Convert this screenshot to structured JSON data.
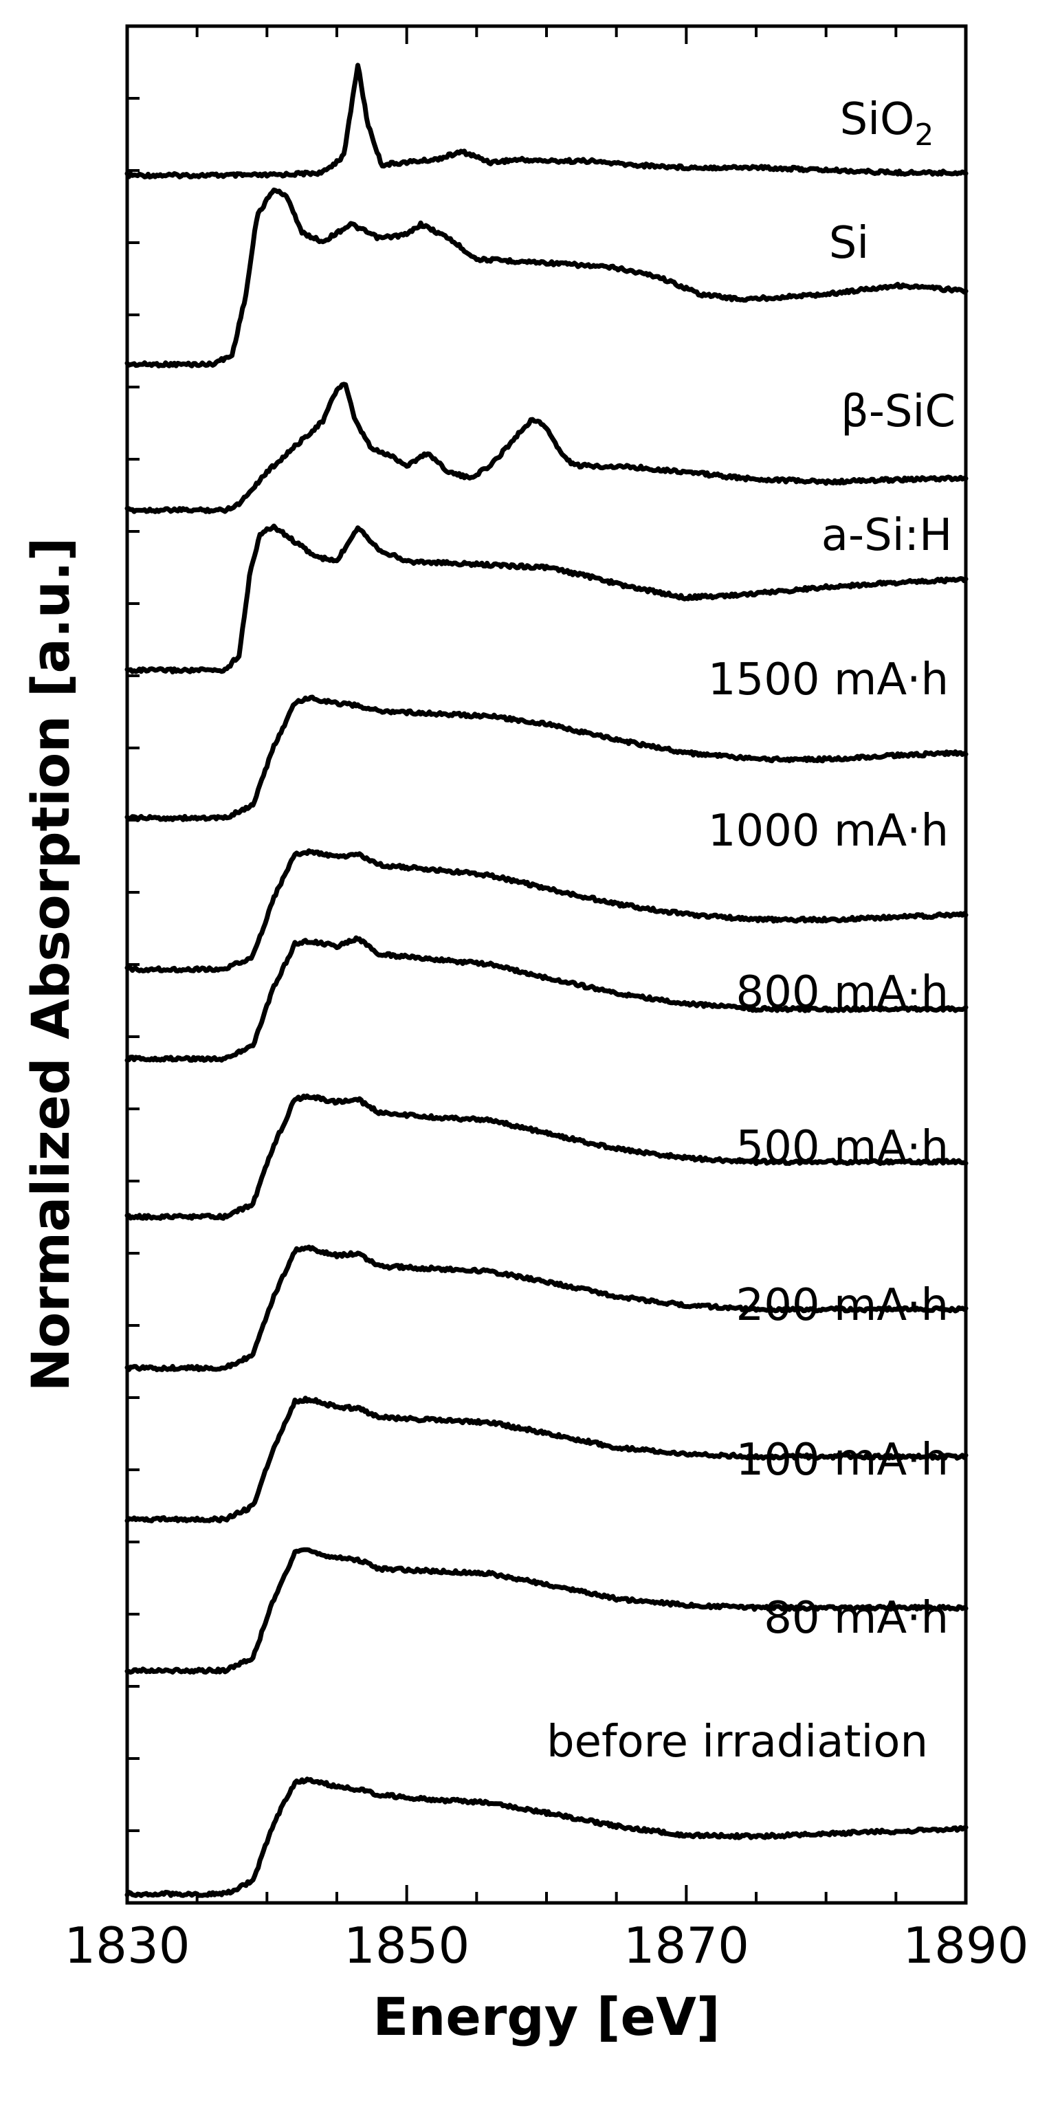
{
  "chart_data": {
    "type": "line",
    "title": "",
    "xlabel": "Energy [eV]",
    "ylabel": "Normalized Absorption [a.u.]",
    "xlim": [
      1830,
      1890
    ],
    "x_ticks": [
      "1830",
      "1850",
      "1870",
      "1890"
    ],
    "grid": false,
    "legend": "none",
    "series": [
      {
        "name": "SiO2",
        "label_main": "SiO",
        "label_sub": "2",
        "points": [
          [
            1830,
            0
          ],
          [
            1840,
            0
          ],
          [
            1844,
            0.02
          ],
          [
            1845.5,
            0.15
          ],
          [
            1846.5,
            0.85
          ],
          [
            1847.2,
            0.4
          ],
          [
            1848.2,
            0.08
          ],
          [
            1850,
            0.1
          ],
          [
            1852,
            0.12
          ],
          [
            1854,
            0.18
          ],
          [
            1856,
            0.1
          ],
          [
            1858,
            0.12
          ],
          [
            1860,
            0.11
          ],
          [
            1863,
            0.11
          ],
          [
            1866,
            0.08
          ],
          [
            1870,
            0.06
          ],
          [
            1875,
            0.06
          ],
          [
            1880,
            0.04
          ],
          [
            1885,
            0.02
          ],
          [
            1890,
            0.02
          ]
        ]
      },
      {
        "name": "Si",
        "label_main": "Si",
        "label_sub": "",
        "points": [
          [
            1830,
            0
          ],
          [
            1836,
            0
          ],
          [
            1837.5,
            0.05
          ],
          [
            1838.5,
            0.4
          ],
          [
            1839.3,
            0.85
          ],
          [
            1840.5,
            1.0
          ],
          [
            1841.5,
            0.95
          ],
          [
            1842.5,
            0.75
          ],
          [
            1844,
            0.7
          ],
          [
            1846,
            0.8
          ],
          [
            1848,
            0.72
          ],
          [
            1850,
            0.74
          ],
          [
            1851,
            0.8
          ],
          [
            1853,
            0.72
          ],
          [
            1855,
            0.6
          ],
          [
            1860,
            0.58
          ],
          [
            1865,
            0.55
          ],
          [
            1868,
            0.5
          ],
          [
            1871,
            0.4
          ],
          [
            1874,
            0.37
          ],
          [
            1880,
            0.4
          ],
          [
            1885,
            0.45
          ],
          [
            1890,
            0.42
          ]
        ]
      },
      {
        "name": "β-SiC",
        "label_main": "β-SiC",
        "label_sub": "",
        "points": [
          [
            1830,
            0
          ],
          [
            1837,
            0
          ],
          [
            1838,
            0.05
          ],
          [
            1840,
            0.3
          ],
          [
            1842,
            0.5
          ],
          [
            1844,
            0.7
          ],
          [
            1845,
            0.95
          ],
          [
            1845.6,
            1.0
          ],
          [
            1846.3,
            0.7
          ],
          [
            1847.5,
            0.48
          ],
          [
            1849,
            0.42
          ],
          [
            1850,
            0.35
          ],
          [
            1851.5,
            0.45
          ],
          [
            1853,
            0.3
          ],
          [
            1854.5,
            0.25
          ],
          [
            1856,
            0.35
          ],
          [
            1858,
            0.6
          ],
          [
            1859,
            0.72
          ],
          [
            1860,
            0.65
          ],
          [
            1861,
            0.45
          ],
          [
            1862,
            0.35
          ],
          [
            1866,
            0.34
          ],
          [
            1870,
            0.3
          ],
          [
            1874,
            0.25
          ],
          [
            1880,
            0.22
          ],
          [
            1885,
            0.24
          ],
          [
            1890,
            0.25
          ]
        ]
      },
      {
        "name": "a-Si:H",
        "label_main": "a-Si:H",
        "label_sub": "",
        "points": [
          [
            1830,
            0
          ],
          [
            1837,
            0
          ],
          [
            1838,
            0.1
          ],
          [
            1838.8,
            0.65
          ],
          [
            1839.5,
            0.9
          ],
          [
            1840.5,
            0.95
          ],
          [
            1842,
            0.85
          ],
          [
            1843.5,
            0.75
          ],
          [
            1845,
            0.72
          ],
          [
            1846.5,
            0.95
          ],
          [
            1848,
            0.8
          ],
          [
            1850,
            0.72
          ],
          [
            1855,
            0.7
          ],
          [
            1860,
            0.68
          ],
          [
            1863,
            0.62
          ],
          [
            1866,
            0.55
          ],
          [
            1870,
            0.48
          ],
          [
            1874,
            0.5
          ],
          [
            1880,
            0.55
          ],
          [
            1885,
            0.58
          ],
          [
            1890,
            0.6
          ]
        ]
      },
      {
        "name": "1500 mA·h",
        "label_main": "1500 mA·h",
        "label_sub": "",
        "points": [
          [
            1830,
            0
          ],
          [
            1837,
            0
          ],
          [
            1839,
            0.1
          ],
          [
            1840.5,
            0.55
          ],
          [
            1842,
            0.88
          ],
          [
            1843,
            0.92
          ],
          [
            1845,
            0.88
          ],
          [
            1846.5,
            0.86
          ],
          [
            1848,
            0.82
          ],
          [
            1852,
            0.8
          ],
          [
            1856,
            0.78
          ],
          [
            1860,
            0.72
          ],
          [
            1865,
            0.6
          ],
          [
            1870,
            0.5
          ],
          [
            1875,
            0.45
          ],
          [
            1880,
            0.45
          ],
          [
            1885,
            0.48
          ],
          [
            1890,
            0.5
          ]
        ]
      },
      {
        "name": "1000 mA·h",
        "label_main": "1000 mA·h",
        "label_sub": "",
        "points": [
          [
            1830,
            0
          ],
          [
            1837,
            0
          ],
          [
            1839,
            0.1
          ],
          [
            1840.5,
            0.55
          ],
          [
            1842,
            0.88
          ],
          [
            1843,
            0.9
          ],
          [
            1845,
            0.86
          ],
          [
            1846.5,
            0.88
          ],
          [
            1848,
            0.8
          ],
          [
            1852,
            0.76
          ],
          [
            1856,
            0.72
          ],
          [
            1860,
            0.62
          ],
          [
            1865,
            0.5
          ],
          [
            1870,
            0.42
          ],
          [
            1875,
            0.38
          ],
          [
            1880,
            0.38
          ],
          [
            1885,
            0.4
          ],
          [
            1890,
            0.42
          ]
        ]
      },
      {
        "name": "800 mA·h",
        "label_main": "800 mA·h",
        "label_sub": "",
        "points": [
          [
            1830,
            0
          ],
          [
            1837,
            0
          ],
          [
            1839,
            0.1
          ],
          [
            1840.5,
            0.55
          ],
          [
            1842,
            0.88
          ],
          [
            1843,
            0.9
          ],
          [
            1845,
            0.86
          ],
          [
            1846.5,
            0.92
          ],
          [
            1848,
            0.8
          ],
          [
            1852,
            0.76
          ],
          [
            1856,
            0.72
          ],
          [
            1860,
            0.62
          ],
          [
            1865,
            0.5
          ],
          [
            1870,
            0.42
          ],
          [
            1875,
            0.38
          ],
          [
            1880,
            0.38
          ],
          [
            1885,
            0.38
          ],
          [
            1890,
            0.38
          ]
        ]
      },
      {
        "name": "500 mA·h",
        "label_main": "500 mA·h",
        "label_sub": "",
        "points": [
          [
            1830,
            0
          ],
          [
            1837,
            0
          ],
          [
            1839,
            0.1
          ],
          [
            1840.5,
            0.55
          ],
          [
            1842,
            0.9
          ],
          [
            1843,
            0.92
          ],
          [
            1845,
            0.88
          ],
          [
            1846.5,
            0.9
          ],
          [
            1848,
            0.8
          ],
          [
            1852,
            0.76
          ],
          [
            1856,
            0.74
          ],
          [
            1860,
            0.64
          ],
          [
            1865,
            0.52
          ],
          [
            1870,
            0.45
          ],
          [
            1875,
            0.42
          ],
          [
            1880,
            0.42
          ],
          [
            1885,
            0.42
          ],
          [
            1890,
            0.42
          ]
        ]
      },
      {
        "name": "200 mA·h",
        "label_main": "200 mA·h",
        "label_sub": "",
        "points": [
          [
            1830,
            0
          ],
          [
            1837,
            0
          ],
          [
            1839,
            0.1
          ],
          [
            1840.5,
            0.55
          ],
          [
            1842,
            0.9
          ],
          [
            1843,
            0.92
          ],
          [
            1845,
            0.86
          ],
          [
            1846.5,
            0.88
          ],
          [
            1848,
            0.78
          ],
          [
            1852,
            0.76
          ],
          [
            1856,
            0.74
          ],
          [
            1860,
            0.66
          ],
          [
            1865,
            0.55
          ],
          [
            1870,
            0.48
          ],
          [
            1875,
            0.45
          ],
          [
            1880,
            0.45
          ],
          [
            1885,
            0.45
          ],
          [
            1890,
            0.45
          ]
        ]
      },
      {
        "name": "100 mA·h",
        "label_main": "100 mA·h",
        "label_sub": "",
        "points": [
          [
            1830,
            0
          ],
          [
            1837,
            0
          ],
          [
            1839,
            0.1
          ],
          [
            1840.5,
            0.55
          ],
          [
            1842,
            0.9
          ],
          [
            1843,
            0.92
          ],
          [
            1845,
            0.86
          ],
          [
            1846.5,
            0.85
          ],
          [
            1848,
            0.78
          ],
          [
            1852,
            0.76
          ],
          [
            1856,
            0.74
          ],
          [
            1860,
            0.66
          ],
          [
            1865,
            0.55
          ],
          [
            1870,
            0.5
          ],
          [
            1875,
            0.48
          ],
          [
            1880,
            0.48
          ],
          [
            1885,
            0.48
          ],
          [
            1890,
            0.48
          ]
        ]
      },
      {
        "name": "80 mA·h",
        "label_main": "80 mA·h",
        "label_sub": "",
        "points": [
          [
            1830,
            0
          ],
          [
            1837,
            0
          ],
          [
            1839,
            0.1
          ],
          [
            1840.5,
            0.55
          ],
          [
            1842,
            0.9
          ],
          [
            1843,
            0.92
          ],
          [
            1845,
            0.86
          ],
          [
            1846.5,
            0.85
          ],
          [
            1848,
            0.78
          ],
          [
            1852,
            0.76
          ],
          [
            1856,
            0.74
          ],
          [
            1860,
            0.66
          ],
          [
            1865,
            0.55
          ],
          [
            1870,
            0.5
          ],
          [
            1875,
            0.48
          ],
          [
            1880,
            0.48
          ],
          [
            1885,
            0.48
          ],
          [
            1890,
            0.48
          ]
        ]
      },
      {
        "name": "before irradiation",
        "label_main": "before irradiation",
        "label_sub": "",
        "points": [
          [
            1830,
            0
          ],
          [
            1837,
            0
          ],
          [
            1839,
            0.1
          ],
          [
            1840.5,
            0.55
          ],
          [
            1842,
            0.85
          ],
          [
            1843,
            0.88
          ],
          [
            1845,
            0.82
          ],
          [
            1846.5,
            0.8
          ],
          [
            1848,
            0.76
          ],
          [
            1852,
            0.72
          ],
          [
            1856,
            0.7
          ],
          [
            1860,
            0.62
          ],
          [
            1865,
            0.52
          ],
          [
            1870,
            0.45
          ],
          [
            1875,
            0.44
          ],
          [
            1880,
            0.46
          ],
          [
            1885,
            0.48
          ],
          [
            1890,
            0.5
          ]
        ]
      }
    ]
  }
}
